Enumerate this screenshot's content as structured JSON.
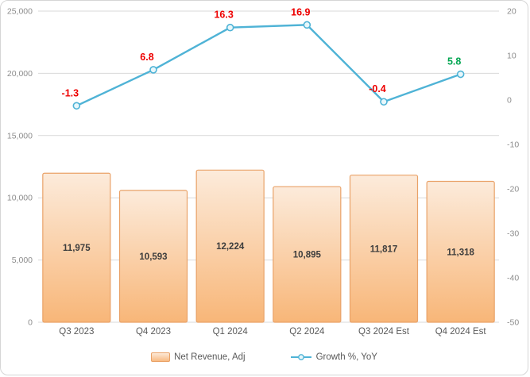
{
  "frame": {
    "background": "#FFFFFF",
    "border_color": "#D6D6D6"
  },
  "chart_data": {
    "type": "combo",
    "categories": [
      "Q3 2023",
      "Q4 2023",
      "Q1 2024",
      "Q2 2024",
      "Q3 2024 Est",
      "Q4 2024 Est"
    ],
    "series": [
      {
        "name": "Net Revenue, Adj",
        "type": "bar",
        "axis": "left",
        "values": [
          11975,
          10593,
          12224,
          10895,
          11817,
          11318
        ],
        "labels": [
          "11,975",
          "10,593",
          "12,224",
          "10,895",
          "11,817",
          "11,318"
        ]
      },
      {
        "name": "Growth %, YoY",
        "type": "line",
        "axis": "right",
        "values": [
          -1.3,
          6.8,
          16.3,
          16.9,
          -0.4,
          5.8
        ],
        "labels": [
          "-1.3",
          "6.8",
          "16.3",
          "16.9",
          "-0.4",
          "5.8"
        ],
        "label_colors": [
          "#EE0000",
          "#EE0000",
          "#EE0000",
          "#EE0000",
          "#EE0000",
          "#00A651"
        ]
      }
    ],
    "left_axis": {
      "min": 0,
      "max": 25000,
      "ticks": [
        "25,000",
        "20,000",
        "15,000",
        "10,000",
        "5,000",
        "0"
      ]
    },
    "right_axis": {
      "min": -50,
      "max": 20,
      "ticks": [
        "20",
        "10",
        "0",
        "-10",
        "-20",
        "-30",
        "-40",
        "-50"
      ]
    },
    "grid": true,
    "legend_position": "bottom"
  },
  "colors": {
    "gridline": "#D9D9D9",
    "bar_top": "#FCEBDB",
    "bar_bottom": "#F8B678",
    "bar_border": "#E9A268",
    "line": "#4FB3D6",
    "marker_fill": "#E8F7FB"
  }
}
